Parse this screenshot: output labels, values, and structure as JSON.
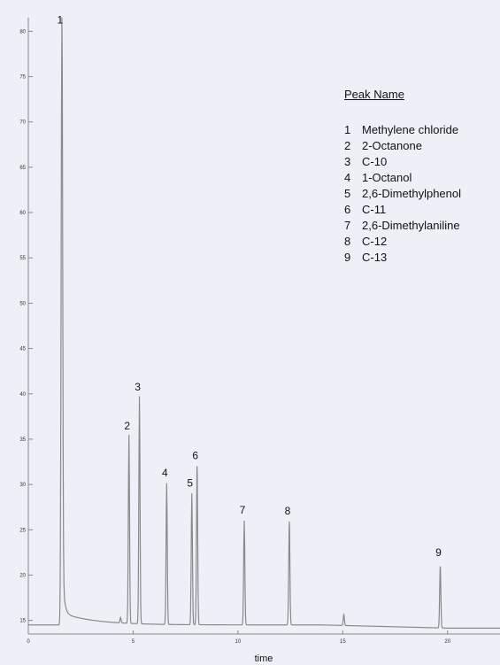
{
  "chart_data": {
    "type": "line",
    "xlabel": "time",
    "ylabel": "",
    "xlim": [
      0,
      22.5
    ],
    "ylim": [
      13.5,
      81.5
    ],
    "x_ticks": [
      0,
      5,
      10,
      15,
      20
    ],
    "y_ticks": [
      15,
      20,
      25,
      30,
      35,
      40,
      45,
      50,
      55,
      60,
      65,
      70,
      75,
      80
    ],
    "baseline": 14.5,
    "legend_title": "Peak Name",
    "peaks": [
      {
        "id": "1",
        "name": "Methylene chloride",
        "time": 1.6,
        "height": 80.0
      },
      {
        "id": "2",
        "name": "2-Octanone",
        "time": 4.8,
        "height": 35.3
      },
      {
        "id": "3",
        "name": "C-10",
        "time": 5.3,
        "height": 39.6
      },
      {
        "id": "4",
        "name": "1-Octanol",
        "time": 6.6,
        "height": 30.1
      },
      {
        "id": "5",
        "name": "2,6-Dimethylphenol",
        "time": 7.8,
        "height": 29.0
      },
      {
        "id": "6",
        "name": "C-11",
        "time": 8.05,
        "height": 32.0
      },
      {
        "id": "7",
        "name": "2,6-Dimethylaniline",
        "time": 10.3,
        "height": 26.0
      },
      {
        "id": "8",
        "name": "C-12",
        "time": 12.45,
        "height": 25.9
      },
      {
        "id": "9",
        "name": "C-13",
        "time": 19.65,
        "height": 21.3
      }
    ],
    "minor_peaks": [
      {
        "time": 4.4,
        "height": 15.1
      },
      {
        "time": 15.05,
        "height": 15.7
      }
    ]
  }
}
